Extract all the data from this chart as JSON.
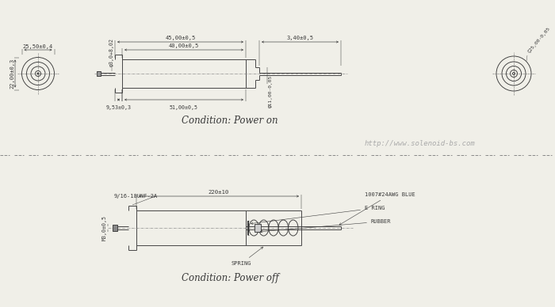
{
  "bg_color": "#f0efe8",
  "line_color": "#3a3a3a",
  "website": "http://www.solenoid-bs.com",
  "top": {
    "condition": "Condition: Power on",
    "dims": {
      "overall_width": "25,50±0,4",
      "height": "22,00±0,3",
      "shaft_d": "φ3,0+8,02",
      "len1": "45,00±0,5",
      "len2": "40,00±0,5",
      "len3": "3,40±0,5",
      "base_len": "9,53±0,3",
      "body_len": "51,00±0,5",
      "right_d": "φ11,00-0,05",
      "far_right_d": "ς25,00-0,05"
    }
  },
  "bot": {
    "condition": "Condition: Power off",
    "dims": {
      "thread": "9/16-18UNF-2A",
      "length": "220±10",
      "screw": "M3,0±0,5"
    },
    "labels": [
      "1007#24AWG BLUE",
      "E RING",
      "RUBBER",
      "SPRING"
    ]
  }
}
